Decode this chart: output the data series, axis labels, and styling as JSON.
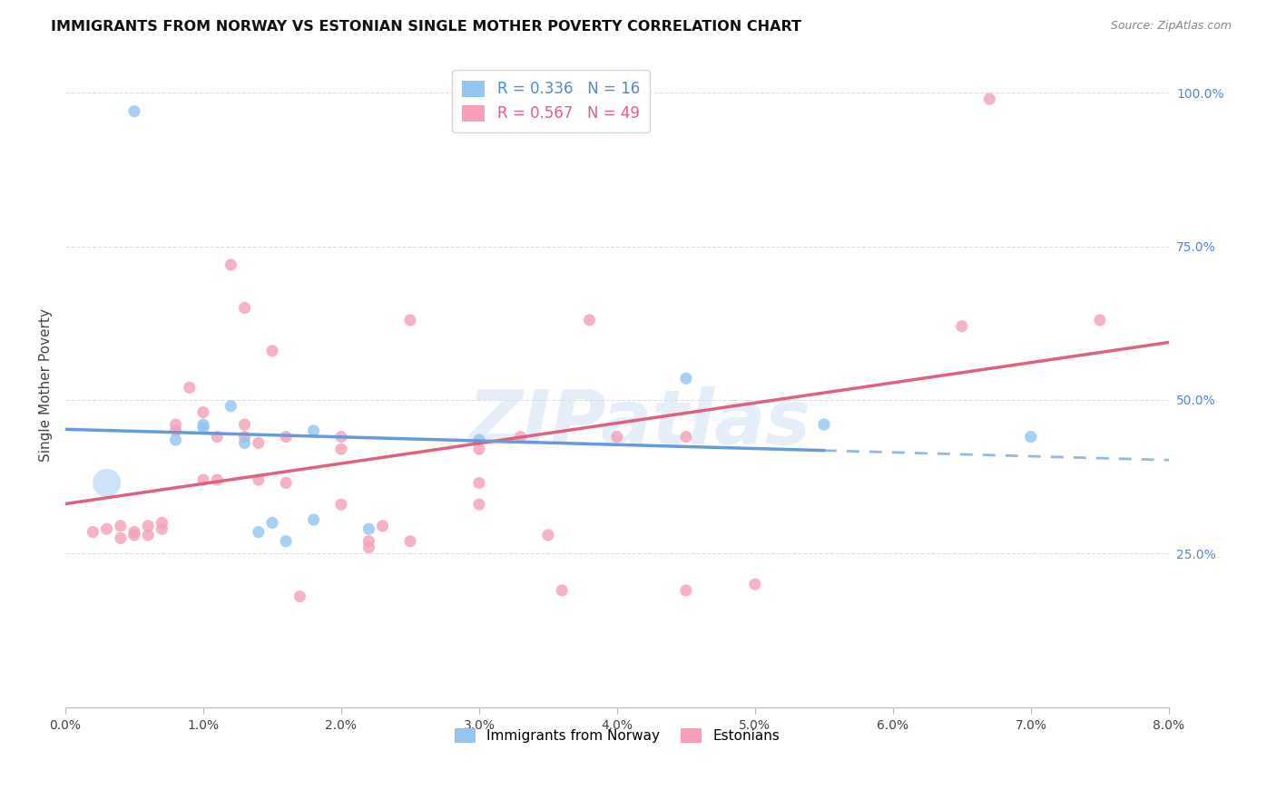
{
  "title": "IMMIGRANTS FROM NORWAY VS ESTONIAN SINGLE MOTHER POVERTY CORRELATION CHART",
  "source": "Source: ZipAtlas.com",
  "ylabel": "Single Mother Poverty",
  "ylabel_right_ticks": [
    "100.0%",
    "75.0%",
    "50.0%",
    "25.0%"
  ],
  "ylabel_right_vals": [
    1.0,
    0.75,
    0.5,
    0.25
  ],
  "legend1_R": "0.336",
  "legend1_N": "16",
  "legend2_R": "0.567",
  "legend2_N": "49",
  "color_norway": "#92C5F0",
  "color_estonian": "#F5A0B8",
  "color_norway_line": "#6699DD",
  "color_estonian_line": "#E06080",
  "watermark": "ZIPatlas",
  "xmin": 0.0,
  "xmax": 0.08,
  "ymin": 0.0,
  "ymax": 1.05,
  "norway_points": [
    [
      0.005,
      0.97
    ],
    [
      0.008,
      0.435
    ],
    [
      0.01,
      0.46
    ],
    [
      0.01,
      0.455
    ],
    [
      0.012,
      0.49
    ],
    [
      0.013,
      0.43
    ],
    [
      0.014,
      0.285
    ],
    [
      0.015,
      0.3
    ],
    [
      0.016,
      0.27
    ],
    [
      0.018,
      0.305
    ],
    [
      0.018,
      0.45
    ],
    [
      0.022,
      0.29
    ],
    [
      0.03,
      0.435
    ],
    [
      0.045,
      0.535
    ],
    [
      0.055,
      0.46
    ],
    [
      0.07,
      0.44
    ]
  ],
  "estonian_points": [
    [
      0.002,
      0.285
    ],
    [
      0.003,
      0.29
    ],
    [
      0.004,
      0.295
    ],
    [
      0.004,
      0.275
    ],
    [
      0.005,
      0.28
    ],
    [
      0.005,
      0.285
    ],
    [
      0.006,
      0.295
    ],
    [
      0.006,
      0.28
    ],
    [
      0.007,
      0.3
    ],
    [
      0.007,
      0.29
    ],
    [
      0.008,
      0.45
    ],
    [
      0.008,
      0.46
    ],
    [
      0.009,
      0.52
    ],
    [
      0.01,
      0.48
    ],
    [
      0.01,
      0.37
    ],
    [
      0.011,
      0.44
    ],
    [
      0.011,
      0.37
    ],
    [
      0.012,
      0.72
    ],
    [
      0.013,
      0.65
    ],
    [
      0.013,
      0.44
    ],
    [
      0.013,
      0.46
    ],
    [
      0.014,
      0.37
    ],
    [
      0.014,
      0.43
    ],
    [
      0.015,
      0.58
    ],
    [
      0.016,
      0.365
    ],
    [
      0.016,
      0.44
    ],
    [
      0.017,
      0.18
    ],
    [
      0.02,
      0.44
    ],
    [
      0.02,
      0.42
    ],
    [
      0.02,
      0.33
    ],
    [
      0.022,
      0.26
    ],
    [
      0.022,
      0.27
    ],
    [
      0.023,
      0.295
    ],
    [
      0.025,
      0.27
    ],
    [
      0.025,
      0.63
    ],
    [
      0.03,
      0.33
    ],
    [
      0.03,
      0.42
    ],
    [
      0.03,
      0.365
    ],
    [
      0.033,
      0.44
    ],
    [
      0.035,
      0.28
    ],
    [
      0.036,
      0.19
    ],
    [
      0.038,
      0.63
    ],
    [
      0.04,
      0.44
    ],
    [
      0.045,
      0.19
    ],
    [
      0.045,
      0.44
    ],
    [
      0.05,
      0.2
    ],
    [
      0.065,
      0.62
    ],
    [
      0.075,
      0.63
    ],
    [
      0.067,
      0.99
    ]
  ],
  "norway_cluster": [
    0.003,
    0.365
  ],
  "norway_cluster_size": 500
}
